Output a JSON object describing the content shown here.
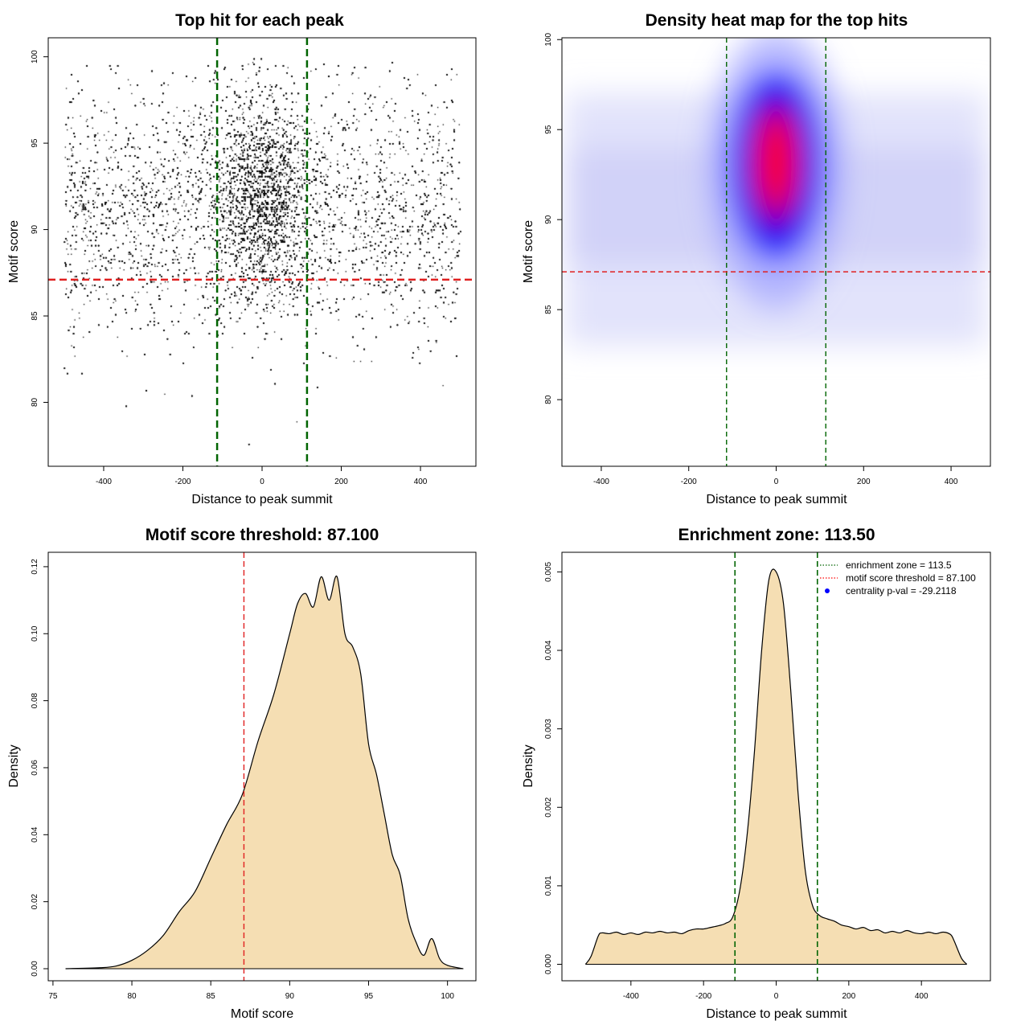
{
  "chart_data": [
    {
      "type": "scatter",
      "title": "Top hit for each peak",
      "xlabel": "Distance to peak summit",
      "ylabel": "Motif score",
      "xlim": [
        -540,
        540
      ],
      "ylim": [
        76.3,
        101.1
      ],
      "x_ticks": [
        -400,
        -200,
        0,
        200,
        400
      ],
      "x_tick_labels": [
        "-400",
        "-200",
        "0",
        "200",
        "400"
      ],
      "y_ticks": [
        80,
        85,
        90,
        95,
        100
      ],
      "y_tick_labels": [
        "80",
        "85",
        "90",
        "95",
        "100"
      ],
      "vlines": [
        -113.5,
        113.5
      ],
      "hline": 87.1,
      "points_description_free": true,
      "x_range": [
        -500,
        500
      ],
      "central_sd": 60,
      "score_mode": 91.5
    },
    {
      "type": "heatmap",
      "title": "Density heat map for the top hits",
      "xlabel": "Distance to peak summit",
      "ylabel": "Motif score",
      "xlim": [
        -490,
        490
      ],
      "ylim": [
        76.3,
        100.1
      ],
      "x_ticks": [
        -400,
        -200,
        0,
        200,
        400
      ],
      "x_tick_labels": [
        "-400",
        "-200",
        "0",
        "200",
        "400"
      ],
      "y_ticks": [
        80,
        85,
        90,
        95,
        100
      ],
      "y_tick_labels": [
        "80",
        "85",
        "90",
        "95",
        "100"
      ],
      "vlines": [
        -113.5,
        113.5
      ],
      "hline": 87.1,
      "hotspot": {
        "x": 0,
        "y": 93.2
      },
      "colors": [
        "#ffffff",
        "#0000ff",
        "#ff0000"
      ]
    },
    {
      "type": "area",
      "title": "Motif score threshold: 87.100",
      "xlabel": "Motif score",
      "ylabel": "Density",
      "xlim": [
        74.7,
        101.8
      ],
      "ylim": [
        -0.0036,
        0.1243
      ],
      "x_ticks": [
        75,
        80,
        85,
        90,
        95,
        100
      ],
      "x_tick_labels": [
        "75",
        "80",
        "85",
        "90",
        "95",
        "100"
      ],
      "y_ticks": [
        0,
        0.02,
        0.04,
        0.06,
        0.08,
        0.1,
        0.12
      ],
      "y_tick_labels": [
        "0.00",
        "0.02",
        "0.04",
        "0.06",
        "0.08",
        "0.10",
        "0.12"
      ],
      "vline": 87.1,
      "x": [
        75.8,
        78.0,
        79.0,
        80.0,
        81.0,
        82.0,
        83.0,
        84.0,
        85.0,
        86.0,
        87.0,
        88.0,
        89.0,
        90.0,
        90.5,
        91.0,
        91.5,
        92.0,
        92.5,
        93.0,
        93.5,
        94.0,
        94.5,
        95.0,
        95.5,
        96.0,
        96.5,
        97.0,
        97.5,
        98.0,
        98.5,
        99.0,
        99.5,
        100.0,
        101.0
      ],
      "y": [
        0.0,
        0.0003,
        0.0008,
        0.0025,
        0.0055,
        0.01,
        0.017,
        0.023,
        0.033,
        0.043,
        0.052,
        0.068,
        0.082,
        0.1,
        0.109,
        0.112,
        0.108,
        0.117,
        0.11,
        0.117,
        0.1,
        0.096,
        0.088,
        0.067,
        0.058,
        0.046,
        0.034,
        0.028,
        0.015,
        0.008,
        0.004,
        0.009,
        0.003,
        0.001,
        0.0
      ]
    },
    {
      "type": "area",
      "title": "Enrichment zone: 113.50",
      "xlabel": "Distance to peak summit",
      "ylabel": "Density",
      "xlim": [
        -590,
        590
      ],
      "ylim": [
        -0.00021,
        0.00525
      ],
      "x_ticks": [
        -400,
        -200,
        0,
        200,
        400
      ],
      "x_tick_labels": [
        "-400",
        "-200",
        "0",
        "200",
        "400"
      ],
      "y_ticks": [
        0,
        0.001,
        0.002,
        0.003,
        0.004,
        0.005
      ],
      "y_tick_labels": [
        "0.000",
        "0.001",
        "0.002",
        "0.003",
        "0.004",
        "0.005"
      ],
      "vlines": [
        -113.5,
        113.5
      ],
      "legend": [
        {
          "label": "enrichment zone = 113.5",
          "color": "#006400",
          "marker": "dotted-line"
        },
        {
          "label": "motif score threshold = 87.100",
          "color": "#ff0000",
          "marker": "dotted-line"
        },
        {
          "label": "centrality p-val = -29.2118",
          "color": "#0000ff",
          "marker": "point"
        }
      ],
      "legend_position": "top-right",
      "x": [
        -525,
        -510,
        -490,
        -480,
        -460,
        -440,
        -420,
        -400,
        -380,
        -360,
        -340,
        -320,
        -300,
        -280,
        -260,
        -240,
        -220,
        -200,
        -180,
        -160,
        -140,
        -120,
        -100,
        -80,
        -60,
        -40,
        -20,
        0,
        20,
        40,
        60,
        80,
        100,
        120,
        140,
        160,
        180,
        200,
        220,
        240,
        260,
        280,
        300,
        320,
        340,
        360,
        380,
        400,
        420,
        440,
        460,
        480,
        490,
        510,
        525
      ],
      "y": [
        0.0,
        0.0001,
        0.00036,
        0.0004,
        0.00039,
        0.00041,
        0.00038,
        0.0004,
        0.00038,
        0.00041,
        0.0004,
        0.00042,
        0.0004,
        0.00041,
        0.00039,
        0.00043,
        0.00045,
        0.00045,
        0.00047,
        0.00049,
        0.00052,
        0.0006,
        0.00095,
        0.00165,
        0.0027,
        0.004,
        0.0049,
        0.005,
        0.0046,
        0.0035,
        0.0022,
        0.0012,
        0.00075,
        0.00062,
        0.00058,
        0.00055,
        0.0005,
        0.00048,
        0.00045,
        0.00047,
        0.00043,
        0.00044,
        0.0004,
        0.00042,
        0.0004,
        0.00043,
        0.0004,
        0.00039,
        0.00041,
        0.00039,
        0.00041,
        0.00038,
        0.0003,
        8e-05,
        0.0
      ]
    }
  ]
}
